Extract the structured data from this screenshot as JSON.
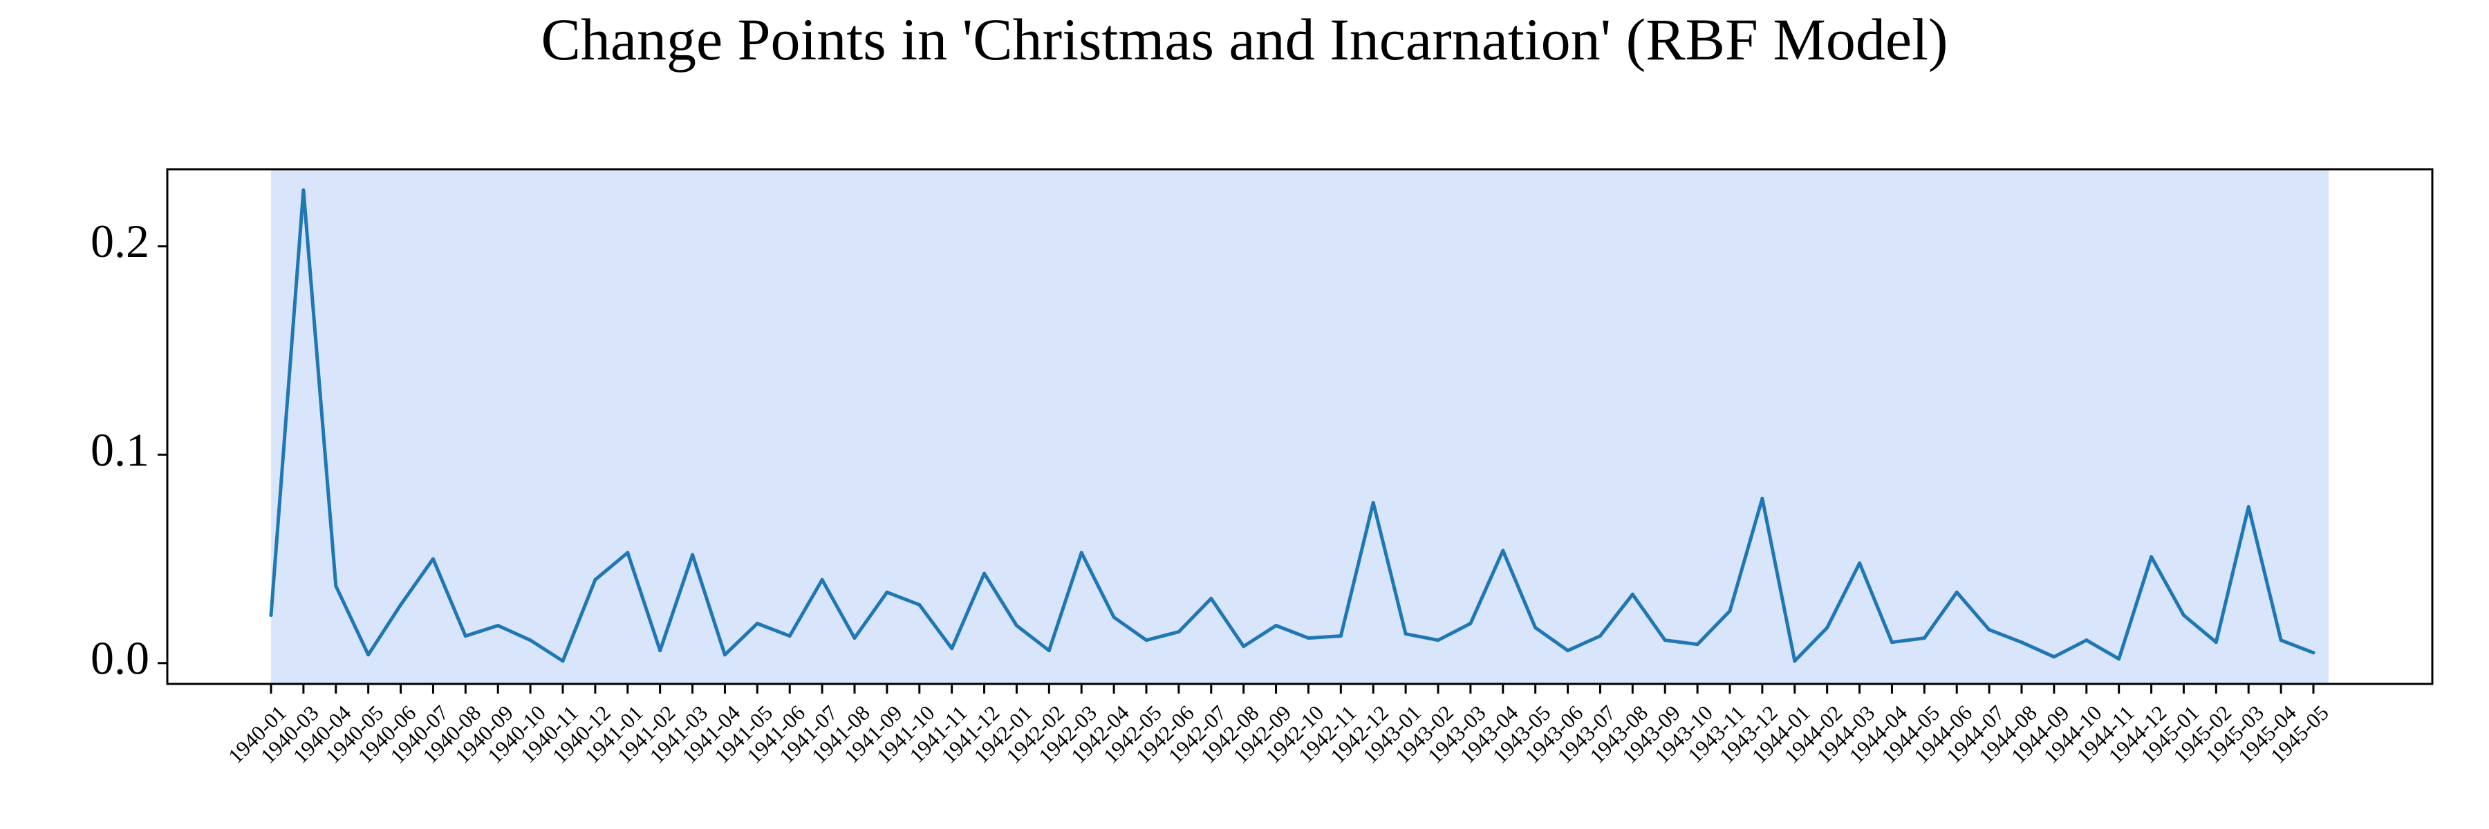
{
  "chart_data": {
    "type": "line",
    "title": "Change Points in 'Christmas and Incarnation' (RBF Model)",
    "xlabel": "",
    "ylabel": "",
    "x": [
      "1940-01",
      "1940-03",
      "1940-04",
      "1940-05",
      "1940-06",
      "1940-07",
      "1940-08",
      "1940-09",
      "1940-10",
      "1940-11",
      "1940-12",
      "1941-01",
      "1941-02",
      "1941-03",
      "1941-04",
      "1941-05",
      "1941-06",
      "1941-07",
      "1941-08",
      "1941-09",
      "1941-10",
      "1941-11",
      "1941-12",
      "1942-01",
      "1942-02",
      "1942-03",
      "1942-04",
      "1942-05",
      "1942-06",
      "1942-07",
      "1942-08",
      "1942-09",
      "1942-10",
      "1942-11",
      "1942-12",
      "1943-01",
      "1943-02",
      "1943-03",
      "1943-04",
      "1943-05",
      "1943-06",
      "1943-07",
      "1943-08",
      "1943-09",
      "1943-10",
      "1943-11",
      "1943-12",
      "1944-01",
      "1944-02",
      "1944-03",
      "1944-04",
      "1944-05",
      "1944-06",
      "1944-07",
      "1944-08",
      "1944-09",
      "1944-10",
      "1944-11",
      "1944-12",
      "1945-01",
      "1945-02",
      "1945-03",
      "1945-04",
      "1945-05"
    ],
    "series": [
      {
        "values": [
          0.023,
          0.227,
          0.037,
          0.004,
          0.028,
          0.05,
          0.013,
          0.018,
          0.011,
          0.001,
          0.04,
          0.053,
          0.006,
          0.052,
          0.004,
          0.019,
          0.013,
          0.04,
          0.012,
          0.034,
          0.028,
          0.007,
          0.043,
          0.018,
          0.006,
          0.053,
          0.022,
          0.011,
          0.015,
          0.031,
          0.008,
          0.018,
          0.012,
          0.013,
          0.077,
          0.014,
          0.011,
          0.019,
          0.054,
          0.017,
          0.006,
          0.013,
          0.033,
          0.011,
          0.009,
          0.025,
          0.079,
          0.001,
          0.017,
          0.048,
          0.01,
          0.012,
          0.034,
          0.016,
          0.01,
          0.003,
          0.011,
          0.002,
          0.051,
          0.023,
          0.01,
          0.075,
          0.011,
          0.005
        ]
      }
    ],
    "ylim": [
      -0.01,
      0.237
    ],
    "yticks": [
      0.0,
      0.1,
      0.2
    ],
    "ytick_labels": [
      "0.0",
      "0.1",
      "0.2"
    ],
    "highlight_region": {
      "start": "1940-01",
      "end": "1945-05"
    },
    "grid": false,
    "colors": {
      "line": "#1f77b4",
      "region": "#d9e5fa",
      "frame": "#000000"
    }
  }
}
